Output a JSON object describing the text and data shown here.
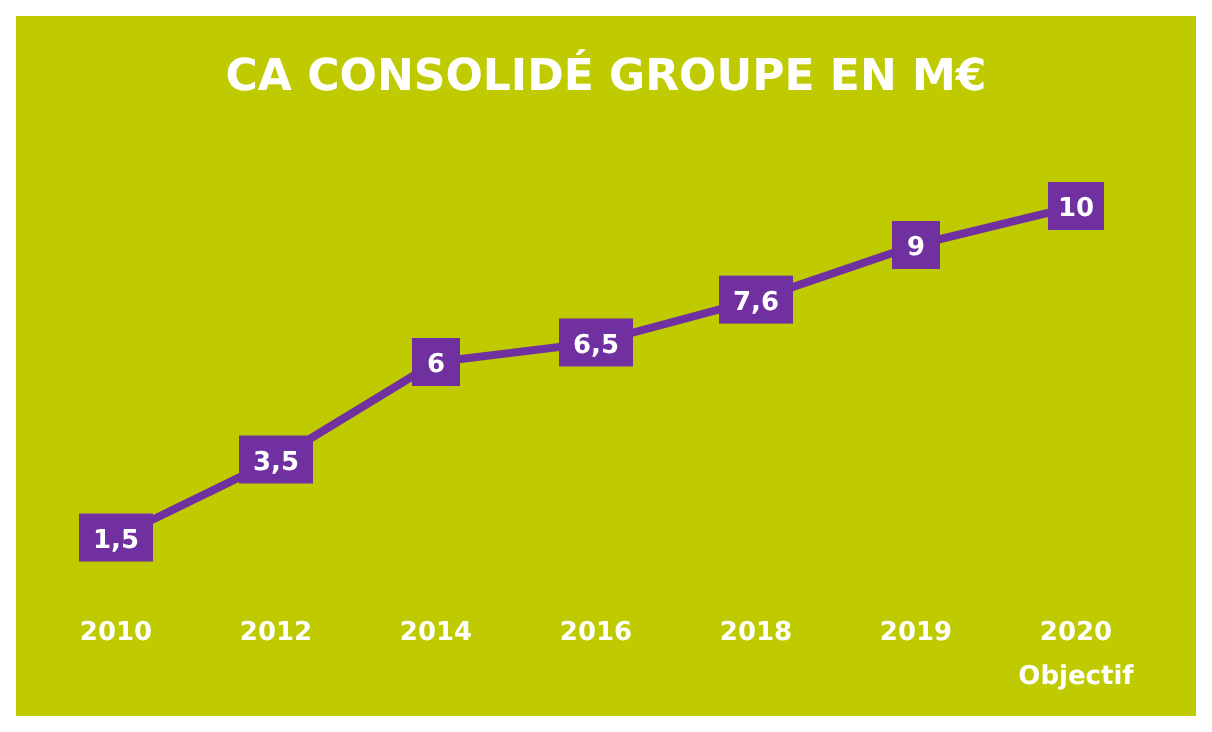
{
  "chart_data": {
    "type": "line",
    "title": "CA CONSOLIDÉ GROUPE EN M€",
    "categories": [
      "2010",
      "2012",
      "2014",
      "2016",
      "2018",
      "2019",
      "2020\nObjectif"
    ],
    "series": [
      {
        "color": "#7030a0",
        "values": [
          1.5,
          3.5,
          6,
          6.5,
          7.6,
          9,
          10
        ],
        "value_labels": [
          "1,5",
          "3,5",
          "6",
          "6,5",
          "7,6",
          "9",
          "10"
        ]
      }
    ],
    "line_style": "solid",
    "marker": "square"
  }
}
